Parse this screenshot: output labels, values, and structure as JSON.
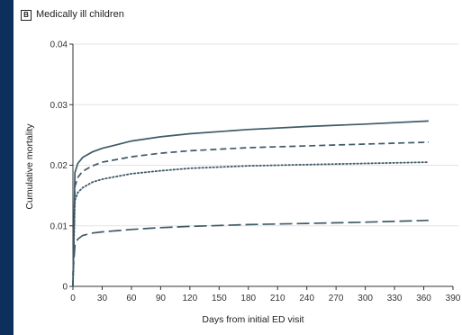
{
  "panel": {
    "letter": "B",
    "title": "Medically ill children"
  },
  "chart_data": {
    "type": "line",
    "xlabel": "Days from initial ED visit",
    "ylabel": "Cumulative mortality",
    "xlim": [
      0,
      390
    ],
    "ylim": [
      0,
      0.04
    ],
    "xticks": [
      "0",
      "30",
      "60",
      "90",
      "120",
      "150",
      "180",
      "210",
      "240",
      "270",
      "300",
      "330",
      "360",
      "390"
    ],
    "yticks": [
      "0",
      "0.01",
      "0.02",
      "0.03",
      "0.04"
    ],
    "grid": "horizontal",
    "series": [
      {
        "style": "solid",
        "color": "#3f5a66",
        "x": [
          0,
          2,
          5,
          10,
          20,
          30,
          60,
          90,
          120,
          180,
          240,
          300,
          365
        ],
        "y": [
          0.0,
          0.0188,
          0.0203,
          0.0213,
          0.0222,
          0.0228,
          0.024,
          0.0247,
          0.0252,
          0.0259,
          0.0264,
          0.0268,
          0.0273
        ]
      },
      {
        "style": "dashed",
        "color": "#3f5a66",
        "x": [
          0,
          2,
          5,
          10,
          20,
          30,
          60,
          90,
          120,
          180,
          240,
          300,
          365
        ],
        "y": [
          0.0,
          0.0165,
          0.018,
          0.019,
          0.0199,
          0.0205,
          0.0214,
          0.022,
          0.0224,
          0.0229,
          0.0232,
          0.0235,
          0.0238
        ]
      },
      {
        "style": "dotted",
        "color": "#3f5a66",
        "x": [
          0,
          2,
          5,
          10,
          20,
          30,
          60,
          90,
          120,
          180,
          240,
          300,
          365
        ],
        "y": [
          0.0,
          0.0142,
          0.0155,
          0.0163,
          0.0172,
          0.0177,
          0.0186,
          0.0191,
          0.0195,
          0.0199,
          0.0201,
          0.0203,
          0.0205
        ]
      },
      {
        "style": "long-dash",
        "color": "#3f5a66",
        "x": [
          0,
          2,
          5,
          10,
          20,
          30,
          60,
          90,
          120,
          180,
          240,
          300,
          365
        ],
        "y": [
          0.002,
          0.0068,
          0.0078,
          0.0084,
          0.0088,
          0.009,
          0.0094,
          0.0097,
          0.0099,
          0.0102,
          0.0104,
          0.0106,
          0.0109
        ]
      }
    ]
  }
}
